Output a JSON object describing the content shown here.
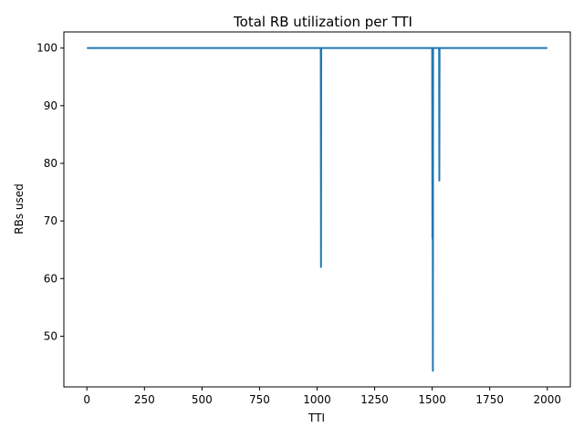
{
  "chart_data": {
    "type": "line",
    "title": "Total RB utilization per TTI",
    "xlabel": "TTI",
    "ylabel": "RBs used",
    "xlim": [
      -100,
      2100
    ],
    "ylim": [
      41.2,
      102.8
    ],
    "xticks": [
      0,
      250,
      500,
      750,
      1000,
      1250,
      1500,
      1750,
      2000
    ],
    "yticks": [
      50,
      60,
      70,
      80,
      90,
      100
    ],
    "grid": false,
    "series": [
      {
        "color": "#1f77b4",
        "x": [
          0,
          1016,
          1017,
          1018,
          1019,
          1500,
          1501,
          1502,
          1503,
          1504,
          1505,
          1530,
          1531,
          1532,
          2000
        ],
        "y": [
          100,
          100,
          62,
          100,
          100,
          100,
          67,
          100,
          44,
          100,
          100,
          100,
          77,
          100,
          100
        ]
      }
    ]
  }
}
